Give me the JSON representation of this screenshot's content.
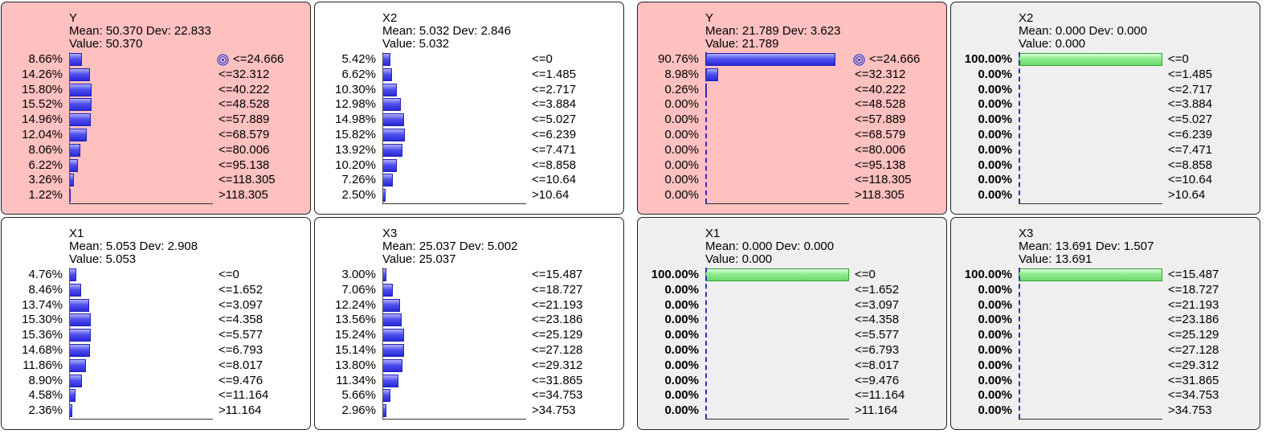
{
  "colors": {
    "evidence_node_bg": "#ffc0c0",
    "normal_node_bg": "#ffffff",
    "disabled_node_bg": "#efefef",
    "bar_blue": "#4040e0",
    "bar_green": "#90ee90"
  },
  "nodes": [
    {
      "id": "y-left",
      "title": "Y",
      "stats": "Mean: 50.370 Dev: 22.833",
      "value_text": "Value: 50.370",
      "bg": "red",
      "bar_color": "blue",
      "bold_pct": false,
      "target_row": 0,
      "rows": [
        {
          "pct": "8.66%",
          "v": 8.66,
          "range": "<=24.666"
        },
        {
          "pct": "14.26%",
          "v": 14.26,
          "range": "<=32.312"
        },
        {
          "pct": "15.80%",
          "v": 15.8,
          "range": "<=40.222"
        },
        {
          "pct": "15.52%",
          "v": 15.52,
          "range": "<=48.528"
        },
        {
          "pct": "14.96%",
          "v": 14.96,
          "range": "<=57.889"
        },
        {
          "pct": "12.04%",
          "v": 12.04,
          "range": "<=68.579"
        },
        {
          "pct": "8.06%",
          "v": 8.06,
          "range": "<=80.006"
        },
        {
          "pct": "6.22%",
          "v": 6.22,
          "range": "<=95.138"
        },
        {
          "pct": "3.26%",
          "v": 3.26,
          "range": "<=118.305"
        },
        {
          "pct": "1.22%",
          "v": 1.22,
          "range": ">118.305"
        }
      ]
    },
    {
      "id": "x2-left",
      "title": "X2",
      "stats": "Mean: 5.032 Dev: 2.846",
      "value_text": "Value: 5.032",
      "bg": "white",
      "bar_color": "blue",
      "bold_pct": false,
      "target_row": -1,
      "rows": [
        {
          "pct": "5.42%",
          "v": 5.42,
          "range": "<=0"
        },
        {
          "pct": "6.62%",
          "v": 6.62,
          "range": "<=1.485"
        },
        {
          "pct": "10.30%",
          "v": 10.3,
          "range": "<=2.717"
        },
        {
          "pct": "12.98%",
          "v": 12.98,
          "range": "<=3.884"
        },
        {
          "pct": "14.98%",
          "v": 14.98,
          "range": "<=5.027"
        },
        {
          "pct": "15.82%",
          "v": 15.82,
          "range": "<=6.239"
        },
        {
          "pct": "13.92%",
          "v": 13.92,
          "range": "<=7.471"
        },
        {
          "pct": "10.20%",
          "v": 10.2,
          "range": "<=8.858"
        },
        {
          "pct": "7.26%",
          "v": 7.26,
          "range": "<=10.64"
        },
        {
          "pct": "2.50%",
          "v": 2.5,
          "range": ">10.64"
        }
      ]
    },
    {
      "id": "y-right",
      "title": "Y",
      "stats": "Mean: 21.789 Dev: 3.623",
      "value_text": "Value: 21.789",
      "bg": "red",
      "bar_color": "blue",
      "bold_pct": false,
      "target_row": 0,
      "rows": [
        {
          "pct": "90.76%",
          "v": 90.76,
          "range": "<=24.666"
        },
        {
          "pct": "8.98%",
          "v": 8.98,
          "range": "<=32.312"
        },
        {
          "pct": "0.26%",
          "v": 0.26,
          "range": "<=40.222"
        },
        {
          "pct": "0.00%",
          "v": 0,
          "range": "<=48.528"
        },
        {
          "pct": "0.00%",
          "v": 0,
          "range": "<=57.889"
        },
        {
          "pct": "0.00%",
          "v": 0,
          "range": "<=68.579"
        },
        {
          "pct": "0.00%",
          "v": 0,
          "range": "<=80.006"
        },
        {
          "pct": "0.00%",
          "v": 0,
          "range": "<=95.138"
        },
        {
          "pct": "0.00%",
          "v": 0,
          "range": "<=118.305"
        },
        {
          "pct": "0.00%",
          "v": 0,
          "range": ">118.305"
        }
      ]
    },
    {
      "id": "x2-right",
      "title": "X2",
      "stats": "Mean: 0.000 Dev: 0.000",
      "value_text": "Value: 0.000",
      "bg": "grey",
      "bar_color": "green",
      "bold_pct": true,
      "target_row": -1,
      "rows": [
        {
          "pct": "100.00%",
          "v": 100,
          "range": "<=0"
        },
        {
          "pct": "0.00%",
          "v": 0,
          "range": "<=1.485"
        },
        {
          "pct": "0.00%",
          "v": 0,
          "range": "<=2.717"
        },
        {
          "pct": "0.00%",
          "v": 0,
          "range": "<=3.884"
        },
        {
          "pct": "0.00%",
          "v": 0,
          "range": "<=5.027"
        },
        {
          "pct": "0.00%",
          "v": 0,
          "range": "<=6.239"
        },
        {
          "pct": "0.00%",
          "v": 0,
          "range": "<=7.471"
        },
        {
          "pct": "0.00%",
          "v": 0,
          "range": "<=8.858"
        },
        {
          "pct": "0.00%",
          "v": 0,
          "range": "<=10.64"
        },
        {
          "pct": "0.00%",
          "v": 0,
          "range": ">10.64"
        }
      ]
    },
    {
      "id": "x1-left",
      "title": "X1",
      "stats": "Mean: 5.053 Dev: 2.908",
      "value_text": "Value: 5.053",
      "bg": "white",
      "bar_color": "blue",
      "bold_pct": false,
      "target_row": -1,
      "rows": [
        {
          "pct": "4.76%",
          "v": 4.76,
          "range": "<=0"
        },
        {
          "pct": "8.46%",
          "v": 8.46,
          "range": "<=1.652"
        },
        {
          "pct": "13.74%",
          "v": 13.74,
          "range": "<=3.097"
        },
        {
          "pct": "15.30%",
          "v": 15.3,
          "range": "<=4.358"
        },
        {
          "pct": "15.36%",
          "v": 15.36,
          "range": "<=5.577"
        },
        {
          "pct": "14.68%",
          "v": 14.68,
          "range": "<=6.793"
        },
        {
          "pct": "11.86%",
          "v": 11.86,
          "range": "<=8.017"
        },
        {
          "pct": "8.90%",
          "v": 8.9,
          "range": "<=9.476"
        },
        {
          "pct": "4.58%",
          "v": 4.58,
          "range": "<=11.164"
        },
        {
          "pct": "2.36%",
          "v": 2.36,
          "range": ">11.164"
        }
      ]
    },
    {
      "id": "x3-left",
      "title": "X3",
      "stats": "Mean: 25.037 Dev: 5.002",
      "value_text": "Value: 25.037",
      "bg": "white",
      "bar_color": "blue",
      "bold_pct": false,
      "target_row": -1,
      "rows": [
        {
          "pct": "3.00%",
          "v": 3.0,
          "range": "<=15.487"
        },
        {
          "pct": "7.06%",
          "v": 7.06,
          "range": "<=18.727"
        },
        {
          "pct": "12.24%",
          "v": 12.24,
          "range": "<=21.193"
        },
        {
          "pct": "13.56%",
          "v": 13.56,
          "range": "<=23.186"
        },
        {
          "pct": "15.24%",
          "v": 15.24,
          "range": "<=25.129"
        },
        {
          "pct": "15.14%",
          "v": 15.14,
          "range": "<=27.128"
        },
        {
          "pct": "13.80%",
          "v": 13.8,
          "range": "<=29.312"
        },
        {
          "pct": "11.34%",
          "v": 11.34,
          "range": "<=31.865"
        },
        {
          "pct": "5.66%",
          "v": 5.66,
          "range": "<=34.753"
        },
        {
          "pct": "2.96%",
          "v": 2.96,
          "range": ">34.753"
        }
      ]
    },
    {
      "id": "x1-right",
      "title": "X1",
      "stats": "Mean: 0.000 Dev: 0.000",
      "value_text": "Value: 0.000",
      "bg": "grey",
      "bar_color": "green",
      "bold_pct": true,
      "target_row": -1,
      "rows": [
        {
          "pct": "100.00%",
          "v": 100,
          "range": "<=0"
        },
        {
          "pct": "0.00%",
          "v": 0,
          "range": "<=1.652"
        },
        {
          "pct": "0.00%",
          "v": 0,
          "range": "<=3.097"
        },
        {
          "pct": "0.00%",
          "v": 0,
          "range": "<=4.358"
        },
        {
          "pct": "0.00%",
          "v": 0,
          "range": "<=5.577"
        },
        {
          "pct": "0.00%",
          "v": 0,
          "range": "<=6.793"
        },
        {
          "pct": "0.00%",
          "v": 0,
          "range": "<=8.017"
        },
        {
          "pct": "0.00%",
          "v": 0,
          "range": "<=9.476"
        },
        {
          "pct": "0.00%",
          "v": 0,
          "range": "<=11.164"
        },
        {
          "pct": "0.00%",
          "v": 0,
          "range": ">11.164"
        }
      ]
    },
    {
      "id": "x3-right",
      "title": "X3",
      "stats": "Mean: 13.691 Dev: 1.507",
      "value_text": "Value: 13.691",
      "bg": "grey",
      "bar_color": "green",
      "bold_pct": true,
      "target_row": -1,
      "rows": [
        {
          "pct": "100.00%",
          "v": 100,
          "range": "<=15.487"
        },
        {
          "pct": "0.00%",
          "v": 0,
          "range": "<=18.727"
        },
        {
          "pct": "0.00%",
          "v": 0,
          "range": "<=21.193"
        },
        {
          "pct": "0.00%",
          "v": 0,
          "range": "<=23.186"
        },
        {
          "pct": "0.00%",
          "v": 0,
          "range": "<=25.129"
        },
        {
          "pct": "0.00%",
          "v": 0,
          "range": "<=27.128"
        },
        {
          "pct": "0.00%",
          "v": 0,
          "range": "<=29.312"
        },
        {
          "pct": "0.00%",
          "v": 0,
          "range": "<=31.865"
        },
        {
          "pct": "0.00%",
          "v": 0,
          "range": "<=34.753"
        },
        {
          "pct": "0.00%",
          "v": 0,
          "range": ">34.753"
        }
      ]
    }
  ]
}
